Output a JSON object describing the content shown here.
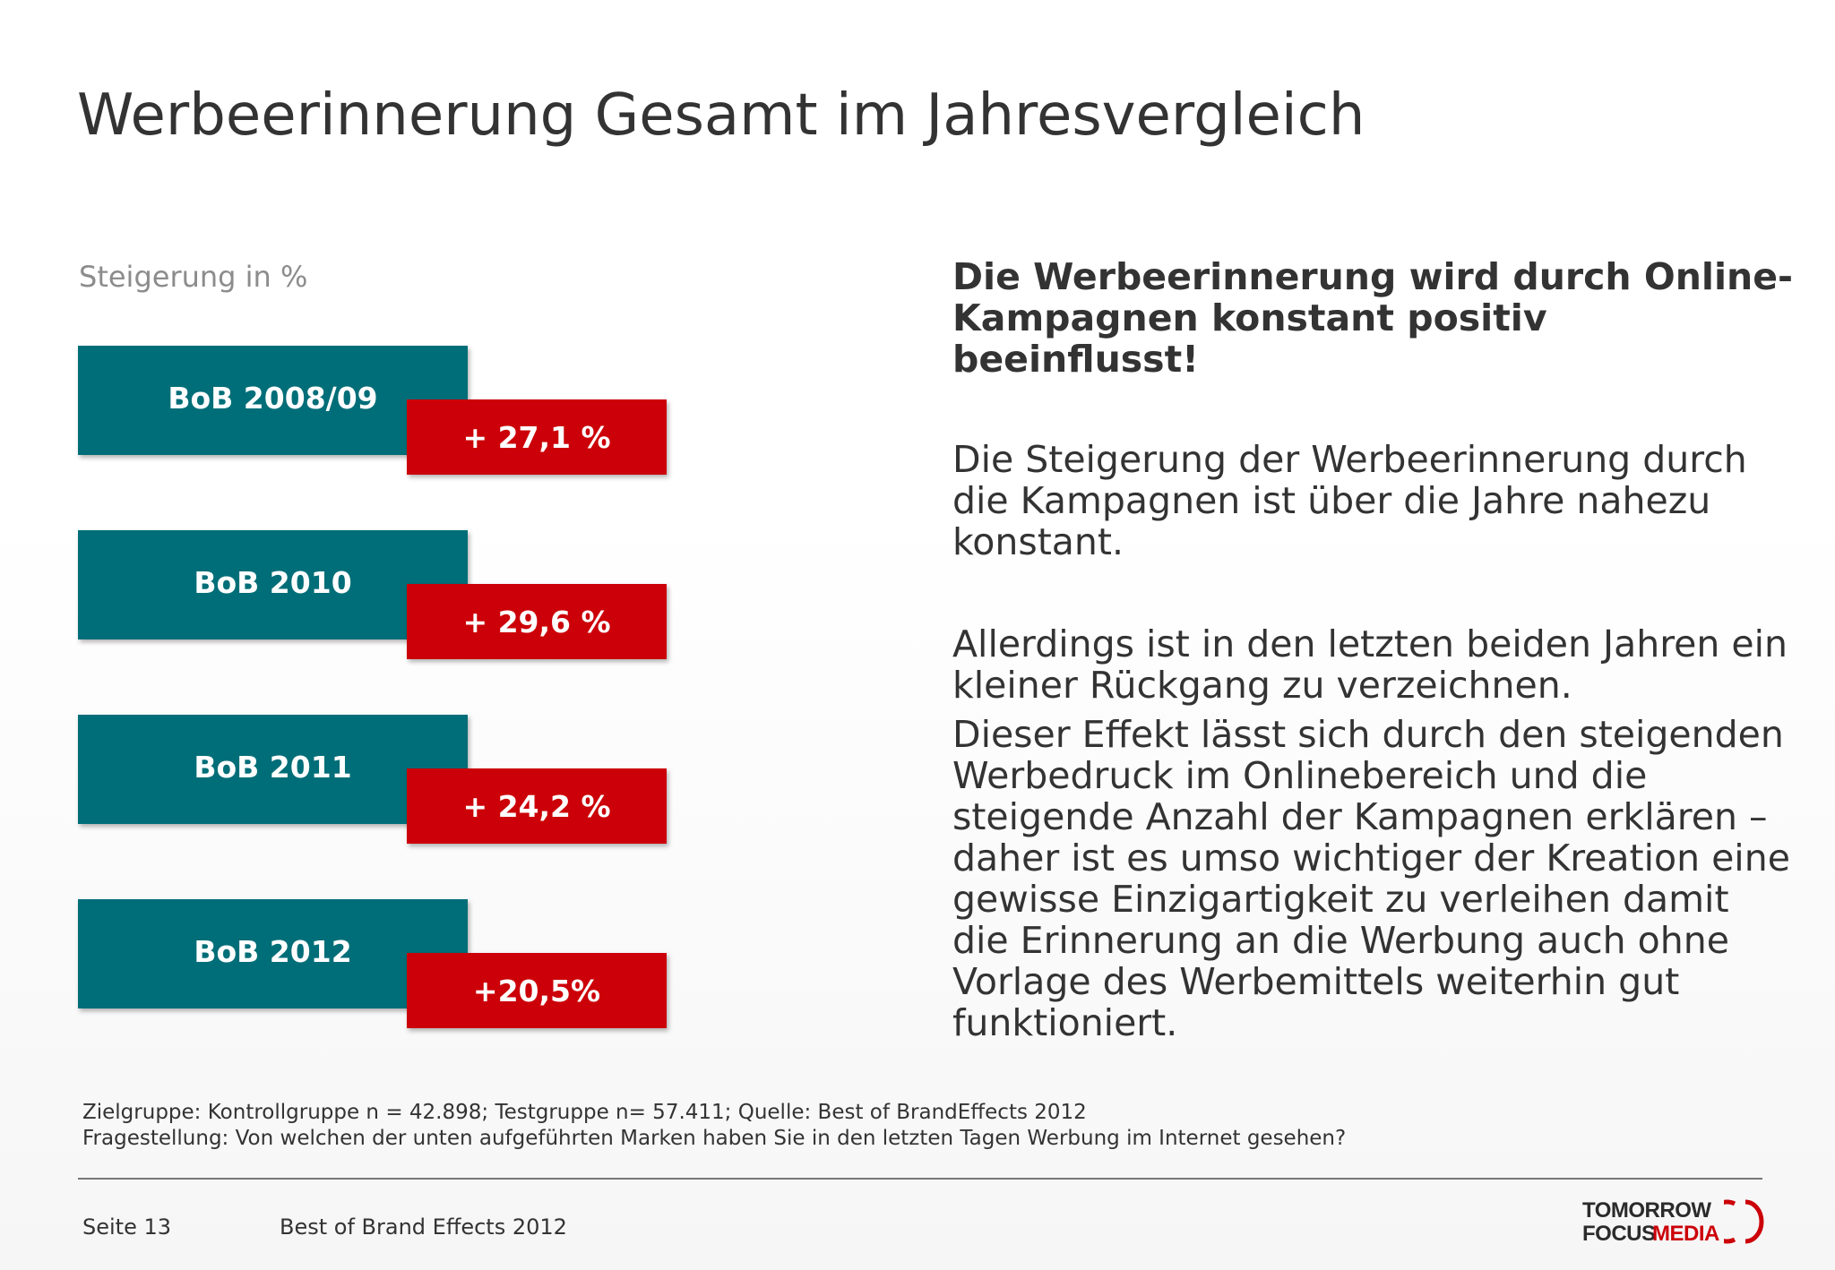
{
  "title": "Werbeerinnerung Gesamt im Jahresvergleich",
  "subtitle": "Steigerung in %",
  "colors": {
    "year_box": "#006e78",
    "value_box": "#cc0008",
    "text": "#333333",
    "subtitle": "#8c8c8c"
  },
  "entries": [
    {
      "year": "BoB 2008/09",
      "value": "+ 27,1 %"
    },
    {
      "year": "BoB 2010",
      "value": "+ 29,6 %"
    },
    {
      "year": "BoB 2011",
      "value": "+ 24,2 %"
    },
    {
      "year": "BoB 2012",
      "value": "+20,5%"
    }
  ],
  "headline": "Die Werbeerinnerung wird durch Online-Kampagnen konstant positiv beeinflusst!",
  "paragraphs": [
    "Die Steigerung der Werbeerinnerung durch die Kampagnen ist über die Jahre nahezu konstant.",
    "Allerdings ist in den letzten beiden Jahren ein kleiner Rückgang zu verzeichnen.",
    "Dieser Effekt lässt sich durch den steigenden Werbedruck im Onlinebereich und die steigende Anzahl der Kampagnen erklären – daher ist es umso wichtiger der Kreation eine gewisse Einzigartigkeit zu verleihen damit die Erinnerung an die Werbung auch ohne Vorlage des Werbemittels weiterhin gut funktioniert."
  ],
  "footnote": {
    "line1": "Zielgruppe: Kontrollgruppe n = 42.898; Testgruppe n= 57.411; Quelle: Best of BrandEffects 2012",
    "line2": "Fragestellung: Von welchen der unten aufgeführten Marken haben Sie in den letzten Tagen Werbung im Internet gesehen?"
  },
  "footer": {
    "page": "Seite 13",
    "doc_title": "Best of Brand Effects 2012"
  },
  "logo": {
    "line1": "TOMORROW",
    "line2a": "FOCUS",
    "line2b": "MEDIA"
  }
}
